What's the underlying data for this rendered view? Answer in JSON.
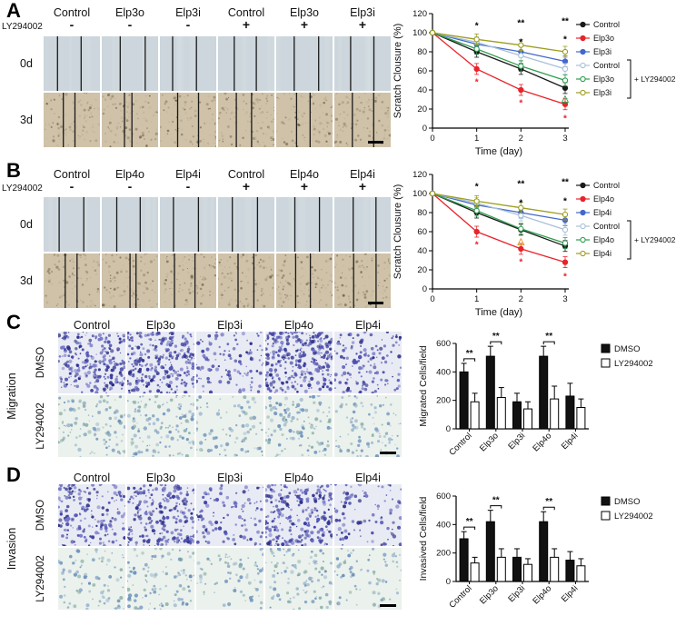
{
  "figure": {
    "panels": {
      "A": {
        "label": "A",
        "col_headers": [
          "Control",
          "Elp3o",
          "Elp3i",
          "Control",
          "Elp3o",
          "Elp3i"
        ],
        "ly_label": "LY294002",
        "ly_signs": [
          "-",
          "-",
          "-",
          "+",
          "+",
          "+"
        ],
        "row_labels": [
          "0d",
          "3d"
        ]
      },
      "B": {
        "label": "B",
        "col_headers": [
          "Control",
          "Elp4o",
          "Elp4i",
          "Control",
          "Elp4o",
          "Elp4i"
        ],
        "ly_label": "LY294002",
        "ly_signs": [
          "-",
          "-",
          "-",
          "+",
          "+",
          "+"
        ],
        "row_labels": [
          "0d",
          "3d"
        ]
      },
      "C": {
        "label": "C",
        "group_label": "Migration",
        "col_headers": [
          "Control",
          "Elp3o",
          "Elp3i",
          "Elp4o",
          "Elp4i"
        ],
        "row_labels": [
          "DMSO",
          "LY294002"
        ]
      },
      "D": {
        "label": "D",
        "group_label": "Invasion",
        "col_headers": [
          "Control",
          "Elp3o",
          "Elp3i",
          "Elp4o",
          "Elp4i"
        ],
        "row_labels": [
          "DMSO",
          "LY294002"
        ]
      }
    },
    "colors": {
      "scratch_0d_bg": "#ccd6dc",
      "scratch_3d_bg": "#cfc2a9",
      "transwell_dmso_bg": "#e9ebf4",
      "transwell_ly_bg": "#ebf1ec",
      "dot_purple": "#3c3fa0",
      "dot_blue": "#7a9cc4"
    }
  },
  "chart_data": [
    {
      "id": "chartA",
      "type": "line",
      "xlabel": "Time (day)",
      "ylabel": "Scratch Clousure (%)",
      "x": [
        0,
        1,
        2,
        3
      ],
      "ylim": [
        0,
        120
      ],
      "yticks": [
        0,
        20,
        40,
        60,
        80,
        100,
        120
      ],
      "legend_bracket_label": "+ LY294002",
      "legend_position": "right",
      "series": [
        {
          "name": "Control",
          "color": "#1a1a1a",
          "marker": "filled",
          "ly": false,
          "values": [
            100,
            80,
            62,
            42
          ]
        },
        {
          "name": "Elp3o",
          "color": "#e8232a",
          "marker": "filled",
          "ly": false,
          "values": [
            100,
            62,
            40,
            25
          ]
        },
        {
          "name": "Elp3i",
          "color": "#4368cc",
          "marker": "filled",
          "ly": false,
          "values": [
            100,
            88,
            80,
            70
          ]
        },
        {
          "name": "Control",
          "color": "#a9c0d8",
          "marker": "open",
          "ly": true,
          "values": [
            100,
            90,
            76,
            62
          ]
        },
        {
          "name": "Elp3o",
          "color": "#2e9e4f",
          "marker": "open",
          "ly": true,
          "values": [
            100,
            83,
            65,
            50
          ]
        },
        {
          "name": "Elp3i",
          "color": "#9d9d20",
          "marker": "open",
          "ly": true,
          "values": [
            100,
            93,
            87,
            80
          ]
        }
      ],
      "annotations": [
        {
          "x": 1,
          "y": 107,
          "text": "*",
          "color": "#000000"
        },
        {
          "x": 2,
          "y": 110,
          "text": "**",
          "color": "#000000"
        },
        {
          "x": 3,
          "y": 112,
          "text": "**",
          "color": "#000000"
        },
        {
          "x": 2,
          "y": 90,
          "text": "*",
          "color": "#000000"
        },
        {
          "x": 3,
          "y": 93,
          "text": "*",
          "color": "#000000"
        },
        {
          "x": 1,
          "y": 48,
          "text": "*",
          "color": "#e8232a"
        },
        {
          "x": 2,
          "y": 26,
          "text": "*",
          "color": "#e8232a"
        },
        {
          "x": 3,
          "y": 10,
          "text": "*",
          "color": "#e8232a"
        },
        {
          "x": 3,
          "y": 31,
          "text": "△",
          "color": "#2e9e4f"
        }
      ]
    },
    {
      "id": "chartB",
      "type": "line",
      "xlabel": "Time (day)",
      "ylabel": "Scratch Clousure (%)",
      "x": [
        0,
        1,
        2,
        3
      ],
      "ylim": [
        0,
        120
      ],
      "yticks": [
        0,
        20,
        40,
        60,
        80,
        100,
        120
      ],
      "legend_bracket_label": "+ LY294002",
      "legend_position": "right",
      "series": [
        {
          "name": "Control",
          "color": "#1a1a1a",
          "marker": "filled",
          "ly": false,
          "values": [
            100,
            80,
            62,
            45
          ]
        },
        {
          "name": "Elp4o",
          "color": "#e8232a",
          "marker": "filled",
          "ly": false,
          "values": [
            100,
            60,
            42,
            28
          ]
        },
        {
          "name": "Elp4i",
          "color": "#4368cc",
          "marker": "filled",
          "ly": false,
          "values": [
            100,
            88,
            80,
            72
          ]
        },
        {
          "name": "Control",
          "color": "#a9c0d8",
          "marker": "open",
          "ly": true,
          "values": [
            100,
            90,
            77,
            62
          ]
        },
        {
          "name": "Elp4o",
          "color": "#2e9e4f",
          "marker": "open",
          "ly": true,
          "values": [
            100,
            82,
            63,
            48
          ]
        },
        {
          "name": "Elp4i",
          "color": "#9d9d20",
          "marker": "open",
          "ly": true,
          "values": [
            100,
            92,
            85,
            78
          ]
        }
      ],
      "annotations": [
        {
          "x": 1,
          "y": 107,
          "text": "*",
          "color": "#000000"
        },
        {
          "x": 2,
          "y": 110,
          "text": "**",
          "color": "#000000"
        },
        {
          "x": 3,
          "y": 112,
          "text": "**",
          "color": "#000000"
        },
        {
          "x": 2,
          "y": 90,
          "text": "*",
          "color": "#000000"
        },
        {
          "x": 3,
          "y": 92,
          "text": "*",
          "color": "#000000"
        },
        {
          "x": 1,
          "y": 46,
          "text": "*",
          "color": "#e8232a"
        },
        {
          "x": 2,
          "y": 28,
          "text": "*",
          "color": "#e8232a"
        },
        {
          "x": 3,
          "y": 13,
          "text": "*",
          "color": "#e8232a"
        },
        {
          "x": 2,
          "y": 50,
          "text": "△",
          "color": "#e09a28"
        }
      ]
    },
    {
      "id": "chartC",
      "type": "bar",
      "ylabel": "Migrated Cells/field",
      "categories": [
        "Control",
        "Elp3o",
        "Elp3i",
        "Elp4o",
        "Elp4i"
      ],
      "ylim": [
        0,
        600
      ],
      "yticks": [
        0,
        200,
        400,
        600
      ],
      "series": [
        {
          "name": "DMSO",
          "fill": "#111111",
          "values": [
            400,
            510,
            190,
            510,
            230
          ],
          "errors": [
            60,
            70,
            60,
            70,
            90
          ]
        },
        {
          "name": "LY294002",
          "fill": "#ffffff",
          "values": [
            190,
            220,
            140,
            210,
            150
          ],
          "errors": [
            60,
            70,
            50,
            90,
            60
          ]
        }
      ],
      "significance": [
        {
          "category": 0,
          "text": "**"
        },
        {
          "category": 1,
          "text": "**"
        },
        {
          "category": 3,
          "text": "**"
        }
      ]
    },
    {
      "id": "chartD",
      "type": "bar",
      "ylabel": "Invasived Cells/field",
      "categories": [
        "Control",
        "Elp3o",
        "Elp3i",
        "Elp4o",
        "Elp4i"
      ],
      "ylim": [
        0,
        600
      ],
      "yticks": [
        0,
        200,
        400,
        600
      ],
      "series": [
        {
          "name": "DMSO",
          "fill": "#111111",
          "values": [
            300,
            420,
            170,
            420,
            150
          ],
          "errors": [
            50,
            80,
            60,
            70,
            60
          ]
        },
        {
          "name": "LY294002",
          "fill": "#ffffff",
          "values": [
            130,
            170,
            120,
            170,
            110
          ],
          "errors": [
            40,
            60,
            40,
            60,
            50
          ]
        }
      ],
      "significance": [
        {
          "category": 0,
          "text": "**"
        },
        {
          "category": 1,
          "text": "**"
        },
        {
          "category": 3,
          "text": "**"
        }
      ]
    }
  ]
}
